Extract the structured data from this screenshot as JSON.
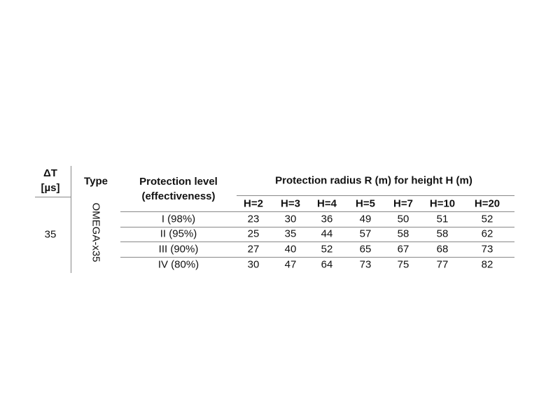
{
  "table": {
    "headers": {
      "delta_t": "ΔT [µs]",
      "type": "Type",
      "protection_level": "Protection level (effectiveness)",
      "protection_radius": "Protection radius R (m) for height H (m)",
      "heights": [
        "H=2",
        "H=3",
        "H=4",
        "H=5",
        "H=7",
        "H=10",
        "H=20"
      ]
    },
    "delta_t": 35,
    "type": "OMEGA-x35",
    "rows": [
      {
        "level": "I (98%)",
        "radii": [
          23,
          30,
          36,
          49,
          50,
          51,
          52
        ]
      },
      {
        "level": "II (95%)",
        "radii": [
          25,
          35,
          44,
          57,
          58,
          58,
          62
        ]
      },
      {
        "level": "III (90%)",
        "radii": [
          27,
          40,
          52,
          65,
          67,
          68,
          73
        ]
      },
      {
        "level": "IV (80%)",
        "radii": [
          30,
          47,
          64,
          73,
          75,
          77,
          82
        ]
      }
    ]
  }
}
